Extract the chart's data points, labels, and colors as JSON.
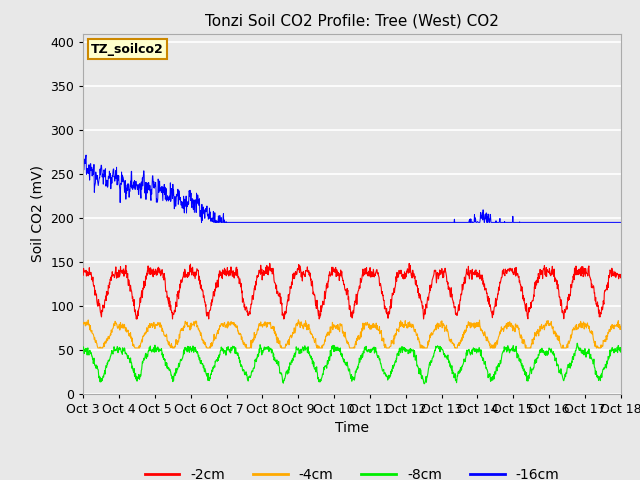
{
  "title": "Tonzi Soil CO2 Profile: Tree (West) CO2",
  "ylabel": "Soil CO2 (mV)",
  "xlabel": "Time",
  "ylim": [
    0,
    410
  ],
  "yticks": [
    0,
    50,
    100,
    150,
    200,
    250,
    300,
    350,
    400
  ],
  "xtick_labels": [
    "Oct 3",
    "Oct 4",
    "Oct 5",
    "Oct 6",
    "Oct 7",
    "Oct 8",
    "Oct 9",
    "Oct 10",
    "Oct 11",
    "Oct 12",
    "Oct 13",
    "Oct 14",
    "Oct 15",
    "Oct 16",
    "Oct 17",
    "Oct 18"
  ],
  "legend_label": "TZ_soilco2",
  "legend_box_facecolor": "#ffffcc",
  "legend_box_edgecolor": "#cc8800",
  "line_labels": [
    "-2cm",
    "-4cm",
    "-8cm",
    "-16cm"
  ],
  "line_colors": [
    "#ff0000",
    "#ffaa00",
    "#00ee00",
    "#0000ff"
  ],
  "fig_facecolor": "#e8e8e8",
  "axes_facecolor": "#e8e8e8",
  "title_fontsize": 11,
  "axis_fontsize": 10,
  "tick_fontsize": 9,
  "legend_fontsize": 10
}
